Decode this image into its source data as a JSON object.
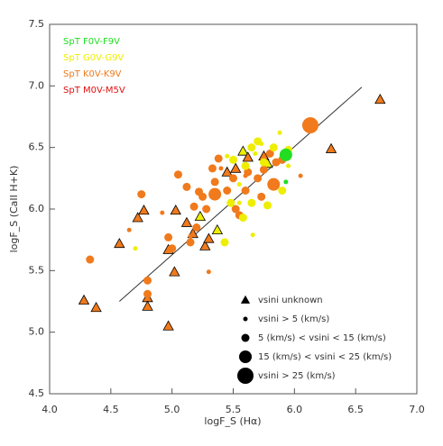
{
  "chart_data": {
    "type": "scatter",
    "xlabel": "logF_S (Hα)",
    "ylabel": "logF_S (CaII H+K)",
    "xlim": [
      4.0,
      7.0
    ],
    "ylim": [
      4.5,
      7.5
    ],
    "xticks": [
      {
        "value": 4,
        "label": "4.0"
      },
      4.5,
      {
        "value": 5,
        "label": "5.0"
      },
      5.5,
      {
        "value": 6,
        "label": "6.0"
      },
      6.5,
      {
        "value": 7,
        "label": "7.0"
      }
    ],
    "yticks": [
      4.5,
      {
        "value": 5,
        "label": "5.0"
      },
      5.5,
      {
        "value": 6,
        "label": "6.0"
      },
      6.5,
      {
        "value": 7,
        "label": "7.0"
      },
      7.5
    ],
    "fit_line": {
      "x": [
        4.57,
        6.55
      ],
      "values": [
        5.25,
        6.99
      ]
    },
    "spectral_types": [
      {
        "name": "SpT F0V-F9V",
        "color": "#22dd22"
      },
      {
        "name": "SpT G0V-G9V",
        "color": "#eeee00"
      },
      {
        "name": "SpT K0V-K9V",
        "color": "#f07a1c"
      },
      {
        "name": "SpT M0V-M5V",
        "color": "#e01010"
      }
    ],
    "series": [
      {
        "name": "vsini unknown",
        "marker": "triangle",
        "x": [
          4.28,
          4.38,
          4.57,
          4.72,
          4.77,
          4.8,
          4.8,
          4.97,
          4.97,
          5.03,
          5.02,
          5.12,
          5.17,
          5.23,
          5.27,
          5.3,
          5.37,
          5.45,
          5.52,
          5.58,
          5.62,
          5.75,
          5.78,
          6.3,
          6.7
        ],
        "values": [
          5.26,
          5.2,
          5.72,
          5.93,
          5.99,
          5.28,
          5.21,
          5.67,
          5.05,
          5.99,
          5.49,
          5.89,
          5.8,
          5.94,
          5.7,
          5.76,
          5.83,
          6.3,
          6.33,
          6.47,
          6.42,
          6.43,
          6.37,
          6.49,
          6.89
        ],
        "colors": [
          "#f07a1c",
          "#f07a1c",
          "#f07a1c",
          "#f07a1c",
          "#f07a1c",
          "#f07a1c",
          "#f07a1c",
          "#f07a1c",
          "#f07a1c",
          "#f07a1c",
          "#f07a1c",
          "#f07a1c",
          "#f07a1c",
          "#eeee00",
          "#f07a1c",
          "#f07a1c",
          "#eeee00",
          "#f07a1c",
          "#f07a1c",
          "#eeee00",
          "#f07a1c",
          "#f07a1c",
          "#eeee00",
          "#f07a1c",
          "#f07a1c"
        ]
      },
      {
        "name": "vsini > 5 (km/s)",
        "marker": "circle",
        "x": [
          4.65,
          4.7,
          4.92,
          5.15,
          5.3,
          5.55,
          5.66,
          5.6,
          5.68,
          5.73,
          5.8,
          5.88,
          5.93,
          6.05,
          5.45,
          5.4,
          5.55,
          5.95
        ],
        "values": [
          5.83,
          5.68,
          5.97,
          5.78,
          5.49,
          6.05,
          5.79,
          6.27,
          6.45,
          6.53,
          6.46,
          6.62,
          6.22,
          6.27,
          6.43,
          6.33,
          6.2,
          6.35
        ],
        "colors": [
          "#f07a1c",
          "#eeee00",
          "#f07a1c",
          "#f07a1c",
          "#f07a1c",
          "#eeee00",
          "#eeee00",
          "#f07a1c",
          "#eeee00",
          "#eeee00",
          "#eeee00",
          "#eeee00",
          "#22dd22",
          "#f07a1c",
          "#eeee00",
          "#f07a1c",
          "#eeee00",
          "#eeee00"
        ]
      },
      {
        "name": "5 (km/s) < vsini < 15 (km/s)",
        "marker": "circle",
        "x": [
          4.33,
          4.75,
          4.8,
          4.8,
          4.97,
          5.0,
          5.05,
          5.12,
          5.15,
          5.18,
          5.2,
          5.22,
          5.25,
          5.28,
          5.33,
          5.35,
          5.38,
          5.45,
          5.5,
          5.52,
          5.55,
          5.6,
          5.62,
          5.7,
          5.73,
          5.75,
          5.8,
          5.85,
          5.9,
          5.5,
          5.6,
          5.65,
          5.7,
          5.75,
          5.83,
          5.9,
          5.95,
          5.78,
          5.48,
          5.65,
          5.58,
          5.43
        ],
        "values": [
          5.59,
          6.12,
          5.42,
          5.31,
          5.77,
          5.68,
          6.28,
          6.18,
          5.73,
          6.02,
          5.85,
          6.14,
          6.1,
          6.0,
          6.33,
          6.22,
          6.41,
          6.15,
          6.25,
          6.0,
          5.95,
          6.15,
          6.3,
          6.25,
          6.1,
          6.32,
          6.45,
          6.38,
          6.4,
          6.4,
          6.35,
          6.5,
          6.55,
          6.38,
          6.5,
          6.15,
          6.48,
          6.03,
          6.05,
          6.05,
          5.93,
          5.73
        ],
        "colors": [
          "#f07a1c",
          "#f07a1c",
          "#f07a1c",
          "#f07a1c",
          "#f07a1c",
          "#f07a1c",
          "#f07a1c",
          "#f07a1c",
          "#f07a1c",
          "#f07a1c",
          "#f07a1c",
          "#f07a1c",
          "#f07a1c",
          "#f07a1c",
          "#f07a1c",
          "#f07a1c",
          "#f07a1c",
          "#f07a1c",
          "#f07a1c",
          "#f07a1c",
          "#f07a1c",
          "#f07a1c",
          "#f07a1c",
          "#f07a1c",
          "#f07a1c",
          "#f07a1c",
          "#f07a1c",
          "#f07a1c",
          "#f07a1c",
          "#eeee00",
          "#eeee00",
          "#eeee00",
          "#eeee00",
          "#eeee00",
          "#eeee00",
          "#eeee00",
          "#eeee00",
          "#eeee00",
          "#eeee00",
          "#eeee00",
          "#eeee00",
          "#eeee00"
        ]
      },
      {
        "name": "15 (km/s) < vsini < 25 (km/s)",
        "marker": "circle",
        "x": [
          5.35,
          5.93,
          5.83
        ],
        "values": [
          6.12,
          6.44,
          6.2
        ],
        "colors": [
          "#f07a1c",
          "#22dd22",
          "#f07a1c"
        ]
      },
      {
        "name": "vsini > 25 (km/s)",
        "marker": "circle",
        "x": [
          6.13
        ],
        "values": [
          6.68
        ],
        "colors": [
          "#f07a1c"
        ]
      }
    ]
  }
}
